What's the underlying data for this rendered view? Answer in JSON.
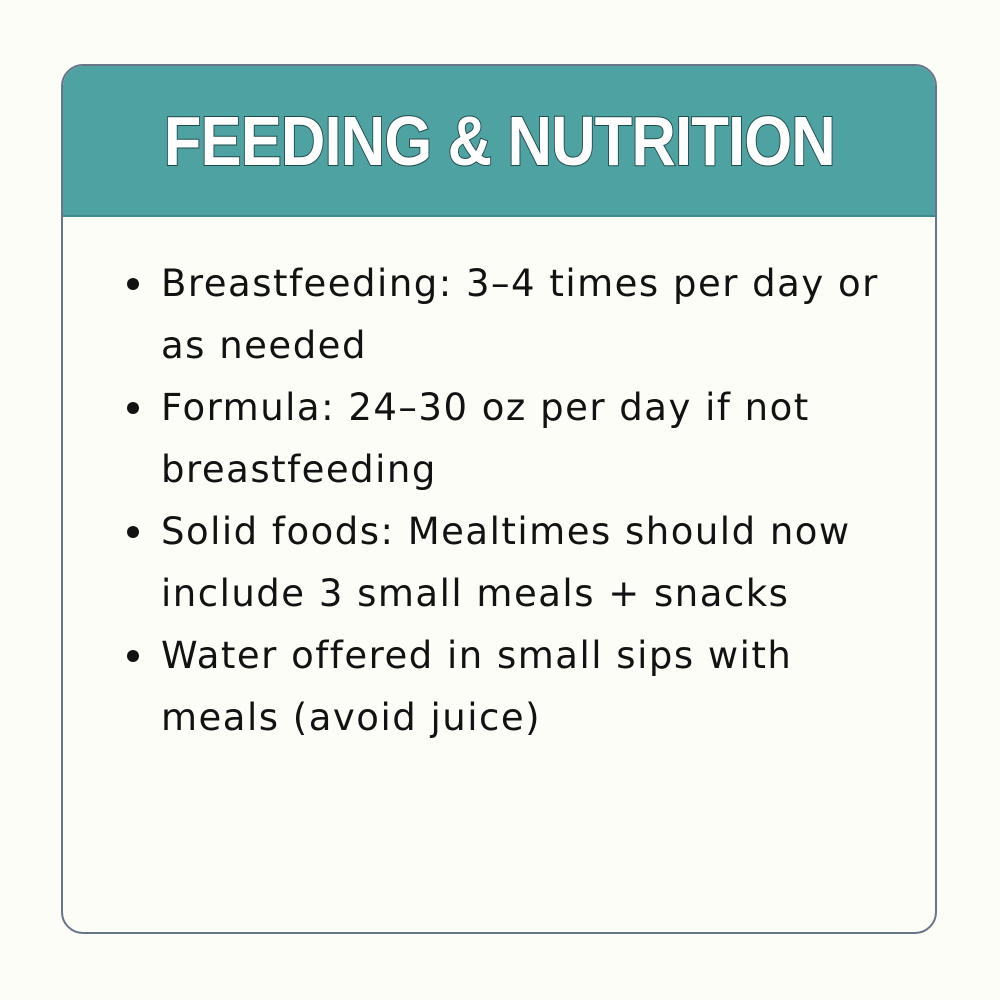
{
  "card": {
    "title": "FEEDING & NUTRITION",
    "items": [
      "Breastfeeding: 3–4 times per day or as needed",
      "Formula: 24–30 oz per day if not breastfeeding",
      "Solid foods: Mealtimes should now include 3 small meals + snacks",
      "Water offered in small sips with meals (avoid juice)"
    ]
  },
  "colors": {
    "header_background": "#4fa2a2",
    "card_border": "#6a7488",
    "page_background": "#fdfdf8",
    "text": "#121212"
  }
}
